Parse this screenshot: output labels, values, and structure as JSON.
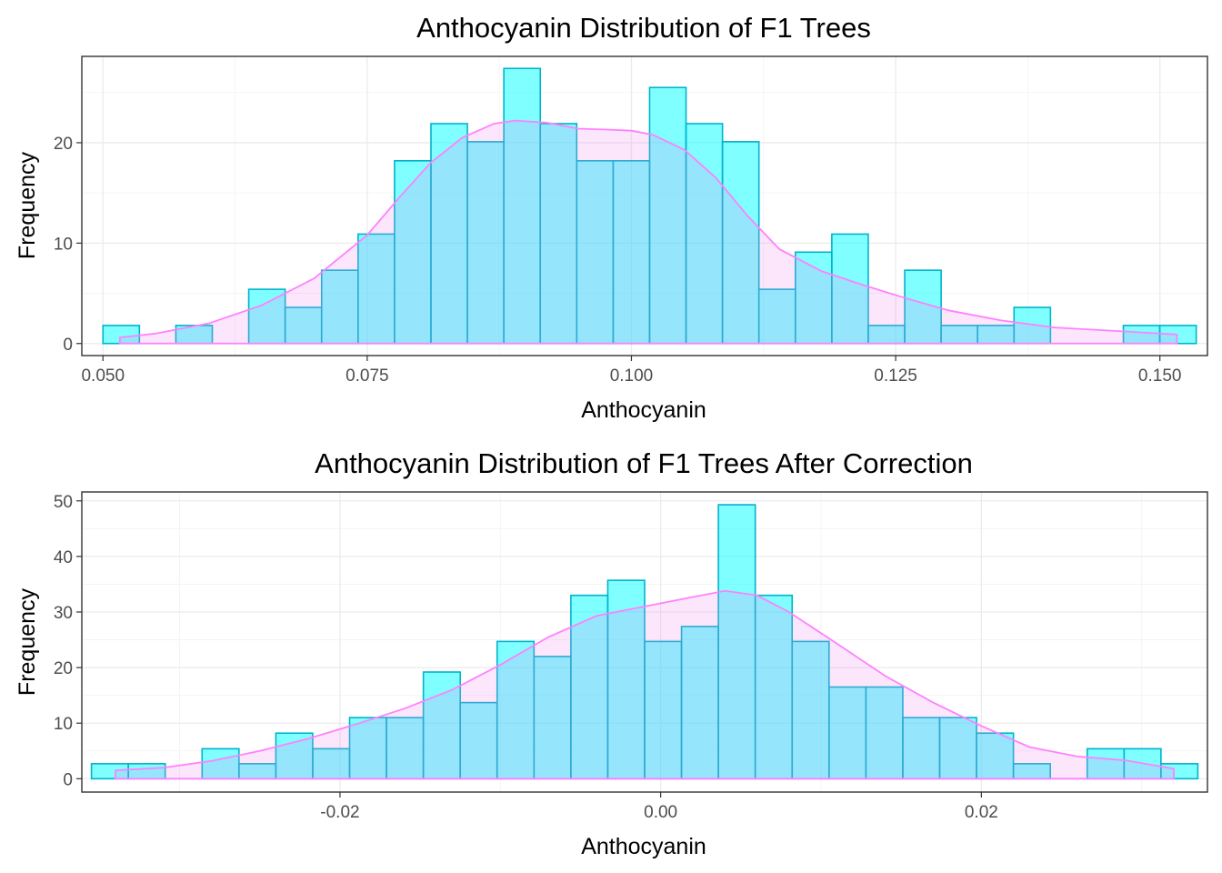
{
  "chart_data": [
    {
      "type": "bar",
      "subtype": "histogram-with-density",
      "title": "Anthocyanin Distribution of F1 Trees",
      "xlabel": "Anthocyanin",
      "ylabel": "Frequency",
      "xlim": [
        0.048,
        0.1545
      ],
      "ylim": [
        -1.2,
        28.6
      ],
      "xticks": [
        0.05,
        0.075,
        0.1,
        0.125,
        0.15
      ],
      "xtick_labels": [
        "0.050",
        "0.075",
        "0.100",
        "0.125",
        "0.150"
      ],
      "yticks": [
        0,
        10,
        20
      ],
      "ytick_labels": [
        "0",
        "10",
        "20"
      ],
      "bin_start": 0.05,
      "bin_width": 0.003448,
      "values": [
        1.8,
        0,
        1.8,
        0,
        5.4,
        3.6,
        7.3,
        10.9,
        18.2,
        21.9,
        20.1,
        27.4,
        21.9,
        18.2,
        18.2,
        25.5,
        21.9,
        20.1,
        5.4,
        9.1,
        10.9,
        1.8,
        7.3,
        1.8,
        1.8,
        3.6,
        0,
        0,
        1.8,
        1.8
      ],
      "density": {
        "x": [
          0.0516,
          0.055,
          0.06,
          0.065,
          0.07,
          0.075,
          0.078,
          0.081,
          0.084,
          0.087,
          0.089,
          0.092,
          0.095,
          0.098,
          0.1,
          0.102,
          0.105,
          0.108,
          0.111,
          0.114,
          0.118,
          0.122,
          0.126,
          0.13,
          0.135,
          0.14,
          0.145,
          0.1516
        ],
        "y": [
          0.6,
          1.0,
          2.0,
          3.8,
          6.5,
          10.8,
          14.5,
          18.0,
          20.5,
          21.9,
          22.2,
          22.0,
          21.4,
          21.3,
          21.2,
          20.8,
          19.3,
          16.5,
          12.7,
          9.4,
          7.2,
          5.8,
          4.5,
          3.3,
          2.3,
          1.6,
          1.3,
          0.9
        ]
      },
      "grid": true
    },
    {
      "type": "bar",
      "subtype": "histogram-with-density",
      "title": "Anthocyanin Distribution of F1 Trees After Correction",
      "xlabel": "Anthocyanin",
      "ylabel": "Frequency",
      "xlim": [
        -0.0361,
        0.0341
      ],
      "ylim": [
        -2.4,
        51.6
      ],
      "xticks": [
        -0.02,
        0.0,
        0.02
      ],
      "xtick_labels": [
        "-0.02",
        "0.00",
        "0.02"
      ],
      "yticks": [
        0,
        10,
        20,
        30,
        40,
        50
      ],
      "ytick_labels": [
        "0",
        "10",
        "20",
        "30",
        "40",
        "50"
      ],
      "bin_start": -0.0355,
      "bin_width": 0.0023,
      "values": [
        2.7,
        2.7,
        0,
        5.4,
        2.7,
        8.2,
        5.4,
        11.0,
        11.0,
        19.2,
        13.7,
        24.7,
        22.0,
        33.0,
        35.7,
        24.7,
        27.4,
        49.3,
        33.0,
        24.7,
        16.5,
        16.5,
        11.0,
        11.0,
        8.2,
        2.7,
        0,
        5.4,
        5.4,
        2.7
      ],
      "density": {
        "x": [
          -0.034,
          -0.031,
          -0.028,
          -0.025,
          -0.022,
          -0.019,
          -0.016,
          -0.013,
          -0.01,
          -0.007,
          -0.004,
          -0.001,
          0.002,
          0.004,
          0.006,
          0.008,
          0.011,
          0.014,
          0.017,
          0.02,
          0.023,
          0.026,
          0.029,
          0.032
        ],
        "y": [
          1.5,
          2.0,
          3.2,
          5.0,
          7.2,
          9.8,
          12.6,
          16.0,
          20.5,
          25.5,
          29.3,
          31.0,
          32.7,
          33.8,
          33.0,
          30.0,
          24.3,
          18.5,
          13.7,
          9.5,
          5.7,
          4.0,
          3.3,
          1.8
        ]
      },
      "grid": true
    }
  ]
}
